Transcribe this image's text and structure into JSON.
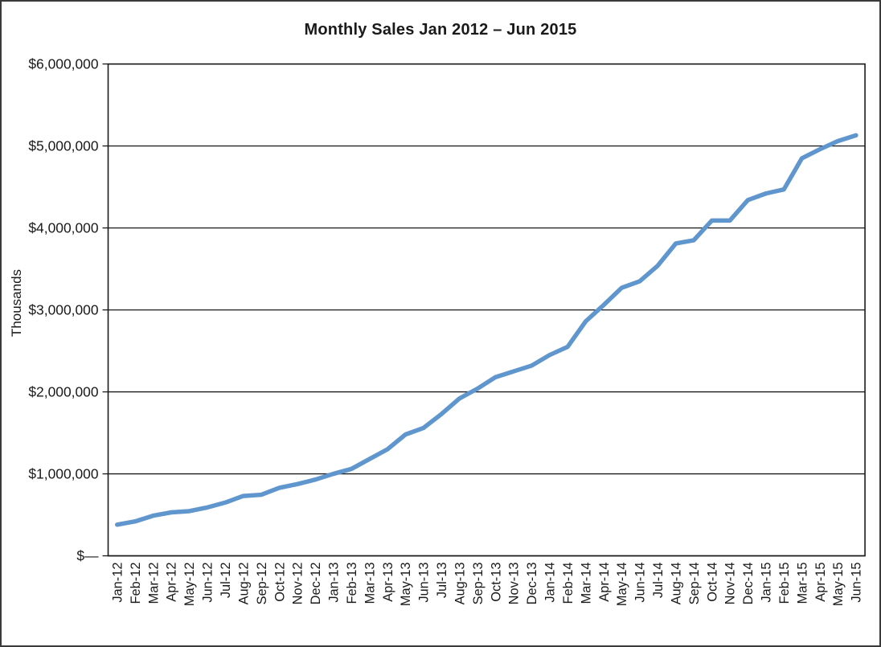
{
  "window": {
    "background": "#ffffff",
    "frame_border_color": "#3a3a3a"
  },
  "chart_data": {
    "type": "line",
    "title": "Monthly Sales Jan 2012 – Jun 2015",
    "ylabel": "Thousands",
    "xlabel": "",
    "legend": "none",
    "grid": "horizontal",
    "line_color": "#6096ce",
    "axis_color": "#1a1a1a",
    "text_color": "#1a1a1a",
    "categories": [
      "Jan-12",
      "Feb-12",
      "Mar-12",
      "Apr-12",
      "May-12",
      "Jun-12",
      "Jul-12",
      "Aug-12",
      "Sep-12",
      "Oct-12",
      "Nov-12",
      "Dec-12",
      "Jan-13",
      "Feb-13",
      "Mar-13",
      "Apr-13",
      "May-13",
      "Jun-13",
      "Jul-13",
      "Aug-13",
      "Sep-13",
      "Oct-13",
      "Nov-13",
      "Dec-13",
      "Jan-14",
      "Feb-14",
      "Mar-14",
      "Apr-14",
      "May-14",
      "Jun-14",
      "Jul-14",
      "Aug-14",
      "Sep-14",
      "Oct-14",
      "Nov-14",
      "Dec-14",
      "Jan-15",
      "Feb-15",
      "Mar-15",
      "Apr-15",
      "May-15",
      "Jun-15"
    ],
    "series": [
      {
        "name": "Monthly Sales",
        "values": [
          380000,
          420000,
          490000,
          530000,
          545000,
          590000,
          650000,
          730000,
          745000,
          830000,
          875000,
          930000,
          1000000,
          1060000,
          1180000,
          1300000,
          1480000,
          1560000,
          1730000,
          1920000,
          2040000,
          2180000,
          2250000,
          2320000,
          2450000,
          2550000,
          2860000,
          3060000,
          3270000,
          3350000,
          3540000,
          3810000,
          3850000,
          4090000,
          4090000,
          4340000,
          4420000,
          4470000,
          4850000,
          4960000,
          5060000,
          5130000
        ]
      }
    ],
    "y_axis": {
      "min": 0,
      "max": 6000000,
      "tick_interval": 1000000,
      "ticks": [
        {
          "value": 0,
          "label": "$—"
        },
        {
          "value": 1000000,
          "label": "$1,000,000"
        },
        {
          "value": 2000000,
          "label": "$2,000,000"
        },
        {
          "value": 3000000,
          "label": "$3,000,000"
        },
        {
          "value": 4000000,
          "label": "$4,000,000"
        },
        {
          "value": 5000000,
          "label": "$5,000,000"
        },
        {
          "value": 6000000,
          "label": "$6,000,000"
        }
      ]
    }
  }
}
